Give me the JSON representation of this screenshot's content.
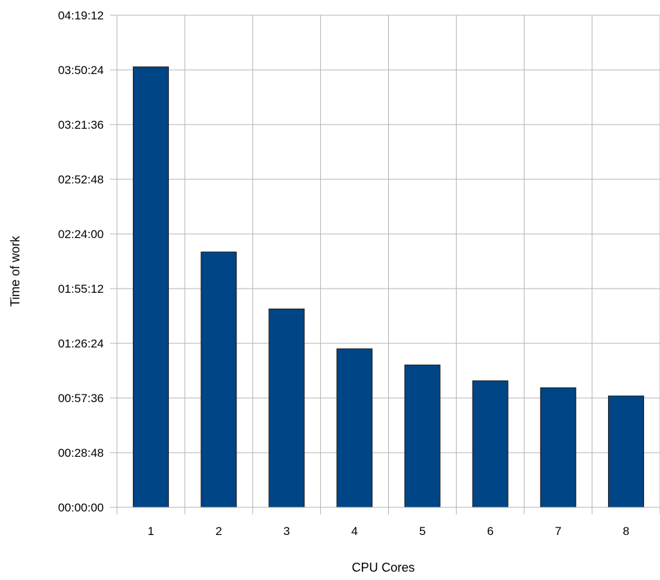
{
  "chart_data": {
    "type": "bar",
    "title": "",
    "xlabel": "CPU Cores",
    "ylabel": "Time of work",
    "categories": [
      "1",
      "2",
      "3",
      "4",
      "5",
      "6",
      "7",
      "8"
    ],
    "series": [
      {
        "values_seconds": [
          13920,
          8070,
          6270,
          5010,
          4500,
          4000,
          3780,
          3520
        ],
        "values": [
          "03:52:00",
          "02:14:30",
          "01:44:30",
          "01:23:30",
          "01:15:00",
          "01:06:40",
          "01:03:00",
          "00:58:40"
        ],
        "color": "#004586"
      }
    ],
    "yticks": [
      "00:00:00",
      "00:28:48",
      "00:57:36",
      "01:26:24",
      "01:55:12",
      "02:24:00",
      "02:52:48",
      "03:21:36",
      "03:50:24",
      "04:19:12"
    ],
    "ylim_seconds": [
      0,
      15552
    ],
    "grid": true,
    "legend": "none"
  }
}
